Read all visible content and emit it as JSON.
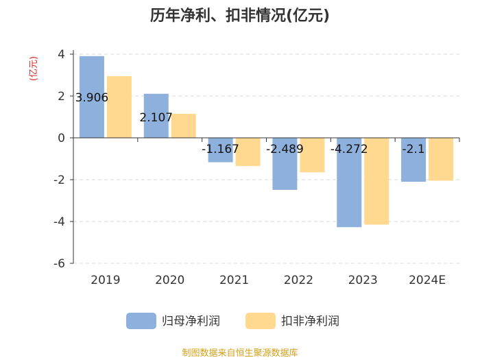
{
  "chart_data": {
    "type": "bar",
    "title": "历年净利、扣非情况(亿元)",
    "ylabel": "(亿元)",
    "xlabel": "",
    "categories": [
      "2019",
      "2020",
      "2021",
      "2022",
      "2023",
      "2024E"
    ],
    "ylim": [
      -6,
      4
    ],
    "yticks": [
      4,
      2,
      0,
      -2,
      -4,
      -6
    ],
    "series": [
      {
        "name": "归母净利润",
        "color": "#8eb0dc",
        "values": [
          3.906,
          2.107,
          -1.167,
          -2.489,
          -4.272,
          -2.1
        ],
        "labels": [
          "3.906",
          "2.107",
          "-1.167",
          "-2.489",
          "-4.272",
          "-2.1"
        ]
      },
      {
        "name": "扣非净利润",
        "color": "#ffd98f",
        "values": [
          2.95,
          1.15,
          -1.35,
          -1.65,
          -4.15,
          -2.05
        ]
      }
    ],
    "grid": true,
    "legend": "bottom-center",
    "source": "制图数据来自恒生聚源数据库"
  }
}
